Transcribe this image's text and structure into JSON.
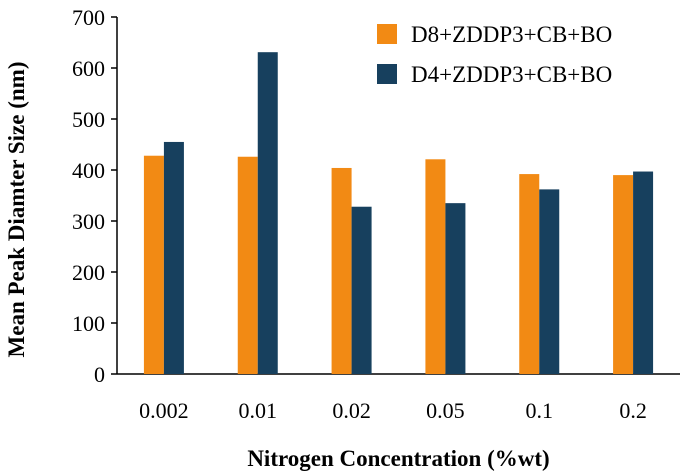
{
  "chart_data": {
    "type": "bar",
    "title": "",
    "xlabel": "Nitrogen Concentration (%wt)",
    "ylabel": "Mean Peak  Diamter Size (nm)",
    "categories": [
      "0.002",
      "0.01",
      "0.02",
      "0.05",
      "0.1",
      "0.2"
    ],
    "series": [
      {
        "name": "D8+ZDDP3+CB+BO",
        "color": "#f28a14",
        "values": [
          428,
          426,
          404,
          421,
          392,
          390
        ]
      },
      {
        "name": "D4+ZDDP3+CB+BO",
        "color": "#17405e",
        "values": [
          455,
          631,
          328,
          335,
          362,
          397
        ]
      }
    ],
    "ylim": [
      0,
      700
    ],
    "yticks": [
      0,
      100,
      200,
      300,
      400,
      500,
      600,
      700
    ],
    "grid": false,
    "legend_position": "top-right"
  }
}
